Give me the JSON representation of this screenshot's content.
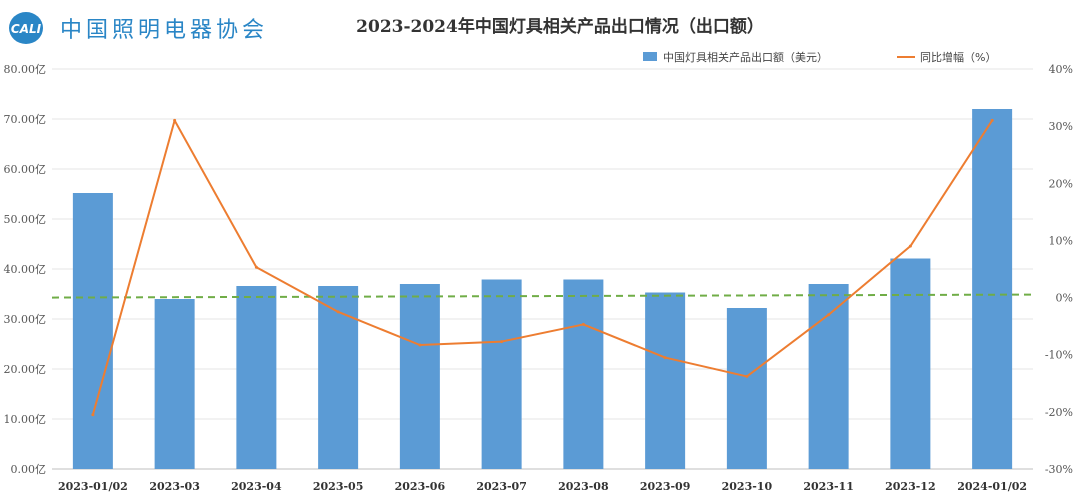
{
  "logo": {
    "mark_text": "CALI",
    "org_name": "中国照明电器协会"
  },
  "chart_data": {
    "type": "bar",
    "title": "2023-2024年中国灯具相关产品出口情况（出口额）",
    "categories": [
      "2023-01/02",
      "2023-03",
      "2023-04",
      "2023-05",
      "2023-06",
      "2023-07",
      "2023-08",
      "2023-09",
      "2023-10",
      "2023-11",
      "2023-12",
      "2024-01/02"
    ],
    "series": [
      {
        "name": "中国灯具相关产品出口额（美元）",
        "type": "bar",
        "axis": "left",
        "color": "#5b9bd5",
        "values": [
          55.2,
          34.0,
          36.6,
          36.6,
          37.0,
          37.9,
          37.9,
          35.3,
          32.2,
          37.0,
          42.1,
          72.0
        ]
      },
      {
        "name": "同比增幅（%）",
        "type": "line",
        "axis": "right",
        "color": "#ed7d31",
        "values": [
          -20.5,
          31.0,
          5.3,
          -2.5,
          -8.3,
          -7.7,
          -4.7,
          -10.5,
          -13.8,
          -3.0,
          9.0,
          31.0
        ]
      }
    ],
    "reference_line": {
      "axis": "right",
      "value": 0,
      "style": "dashed",
      "color": "#70ad47"
    },
    "y_left": {
      "ylim": [
        0,
        80
      ],
      "ticks": [
        "0.00亿",
        "10.00亿",
        "20.00亿",
        "30.00亿",
        "40.00亿",
        "50.00亿",
        "60.00亿",
        "70.00亿",
        "80.00亿"
      ]
    },
    "y_right": {
      "ylim": [
        -30,
        40
      ],
      "ticks": [
        "-30%",
        "-20%",
        "-10%",
        "0%",
        "10%",
        "20%",
        "30%",
        "40%"
      ]
    },
    "grid": true,
    "legend": "top-right"
  }
}
